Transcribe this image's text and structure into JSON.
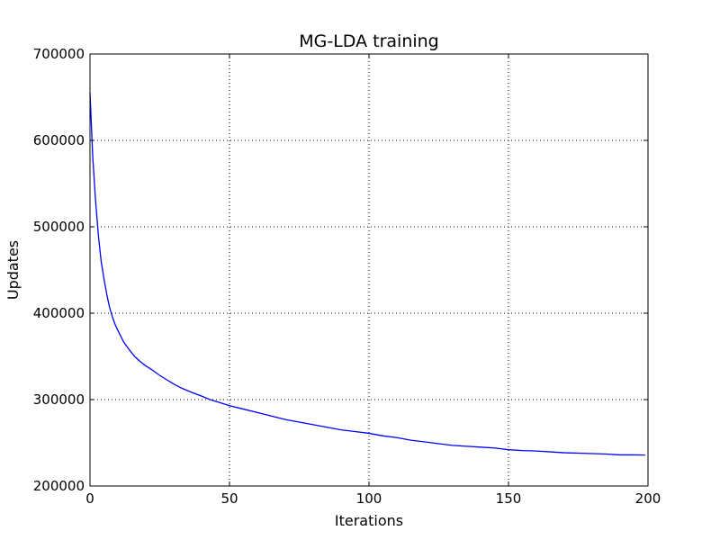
{
  "chart_data": {
    "type": "line",
    "title": "MG-LDA training",
    "xlabel": "Iterations",
    "ylabel": "Updates",
    "xlim": [
      0,
      200
    ],
    "ylim": [
      200000,
      700000
    ],
    "xticks": [
      0,
      50,
      100,
      150,
      200
    ],
    "yticks": [
      200000,
      300000,
      400000,
      500000,
      600000,
      700000
    ],
    "xtick_labels": [
      "0",
      "50",
      "100",
      "150",
      "200"
    ],
    "ytick_labels": [
      "200000",
      "300000",
      "400000",
      "500000",
      "600000",
      "700000"
    ],
    "grid": true,
    "series": [
      {
        "color": "#0000ff",
        "x": [
          0,
          1,
          2,
          3,
          4,
          5,
          6,
          7,
          8,
          9,
          10,
          12,
          14,
          16,
          18,
          20,
          22,
          25,
          28,
          30,
          33,
          36,
          40,
          43,
          45,
          48,
          50,
          55,
          60,
          65,
          70,
          75,
          80,
          85,
          90,
          95,
          100,
          105,
          110,
          115,
          120,
          125,
          130,
          135,
          140,
          145,
          150,
          155,
          160,
          165,
          170,
          175,
          180,
          185,
          190,
          195,
          199
        ],
        "y": [
          655000,
          580000,
          530000,
          490000,
          460000,
          440000,
          422000,
          407000,
          396000,
          387000,
          380000,
          367000,
          358000,
          350000,
          344000,
          339000,
          335000,
          328000,
          322000,
          318000,
          313000,
          309000,
          304000,
          300000,
          298000,
          295000,
          293000,
          289000,
          285000,
          281000,
          277000,
          274000,
          271000,
          268000,
          265000,
          263000,
          261000,
          258000,
          256000,
          253000,
          251000,
          249000,
          247000,
          246000,
          245000,
          244000,
          242000,
          241000,
          240500,
          239500,
          238500,
          238000,
          237500,
          237000,
          236000,
          236000,
          235800
        ]
      }
    ]
  }
}
